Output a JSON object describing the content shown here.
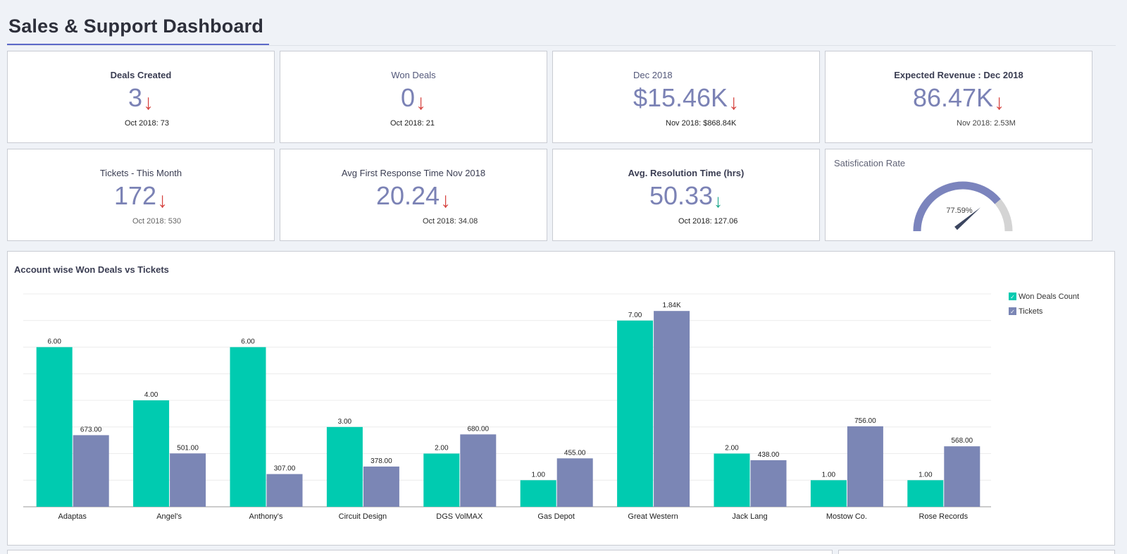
{
  "page": {
    "title": "Sales & Support Dashboard"
  },
  "kpis": [
    {
      "title": "Deals Created",
      "value": "3",
      "sub": "Oct 2018: 73"
    },
    {
      "title": "Won Deals",
      "value": "0",
      "sub": "Oct 2018: 21"
    },
    {
      "title": "Dec 2018",
      "value": "$15.46K",
      "sub": "Nov 2018: $868.84K"
    },
    {
      "title": "Expected Revenue : Dec 2018",
      "value": "86.47K",
      "sub": "Nov 2018: 2.53M"
    },
    {
      "title": "Tickets - This Month",
      "value": "172",
      "sub": "Oct 2018: 530"
    },
    {
      "title": "Avg First Response Time Nov 2018",
      "value": "20.24",
      "sub": "Oct 2018: 34.08"
    },
    {
      "title": "Avg. Resolution Time (hrs)",
      "value": "50.33",
      "sub": "Oct 2018: 127.06"
    }
  ],
  "arrows": {
    "down": "↓"
  },
  "satisfaction": {
    "title": "Satisfication Rate",
    "value_label": "77.59%",
    "value": 77.59
  },
  "colors": {
    "won": "#00cbb0",
    "tickets": "#7b86b5",
    "gauge_fill": "#7b84bd",
    "gauge_track": "#d4d4d4",
    "down_arrow": "#d64541",
    "up_arrow": "#1aa58a"
  },
  "chart_data": {
    "type": "bar",
    "title": "Account wise Won Deals vs Tickets",
    "categories": [
      "Adaptas",
      "Angel's",
      "Anthony's",
      "Circuit Design",
      "DGS VolMAX",
      "Gas Depot",
      "Great Western",
      "Jack Lang",
      "Mostow Co.",
      "Rose Records"
    ],
    "series": [
      {
        "name": "Won Deals Count",
        "values": [
          6,
          4,
          6,
          3,
          2,
          1,
          7,
          2,
          1,
          1
        ],
        "labels": [
          "6.00",
          "4.00",
          "6.00",
          "3.00",
          "2.00",
          "1.00",
          "7.00",
          "2.00",
          "1.00",
          "1.00"
        ],
        "ylim": [
          0,
          8
        ]
      },
      {
        "name": "Tickets",
        "values": [
          673,
          501,
          307,
          378,
          680,
          455,
          1840,
          438,
          756,
          568
        ],
        "labels": [
          "673.00",
          "501.00",
          "307.00",
          "378.00",
          "680.00",
          "455.00",
          "1.84K",
          "438.00",
          "756.00",
          "568.00"
        ],
        "ylim": [
          0,
          2000
        ]
      }
    ],
    "legend": "top-right",
    "grid": true
  }
}
